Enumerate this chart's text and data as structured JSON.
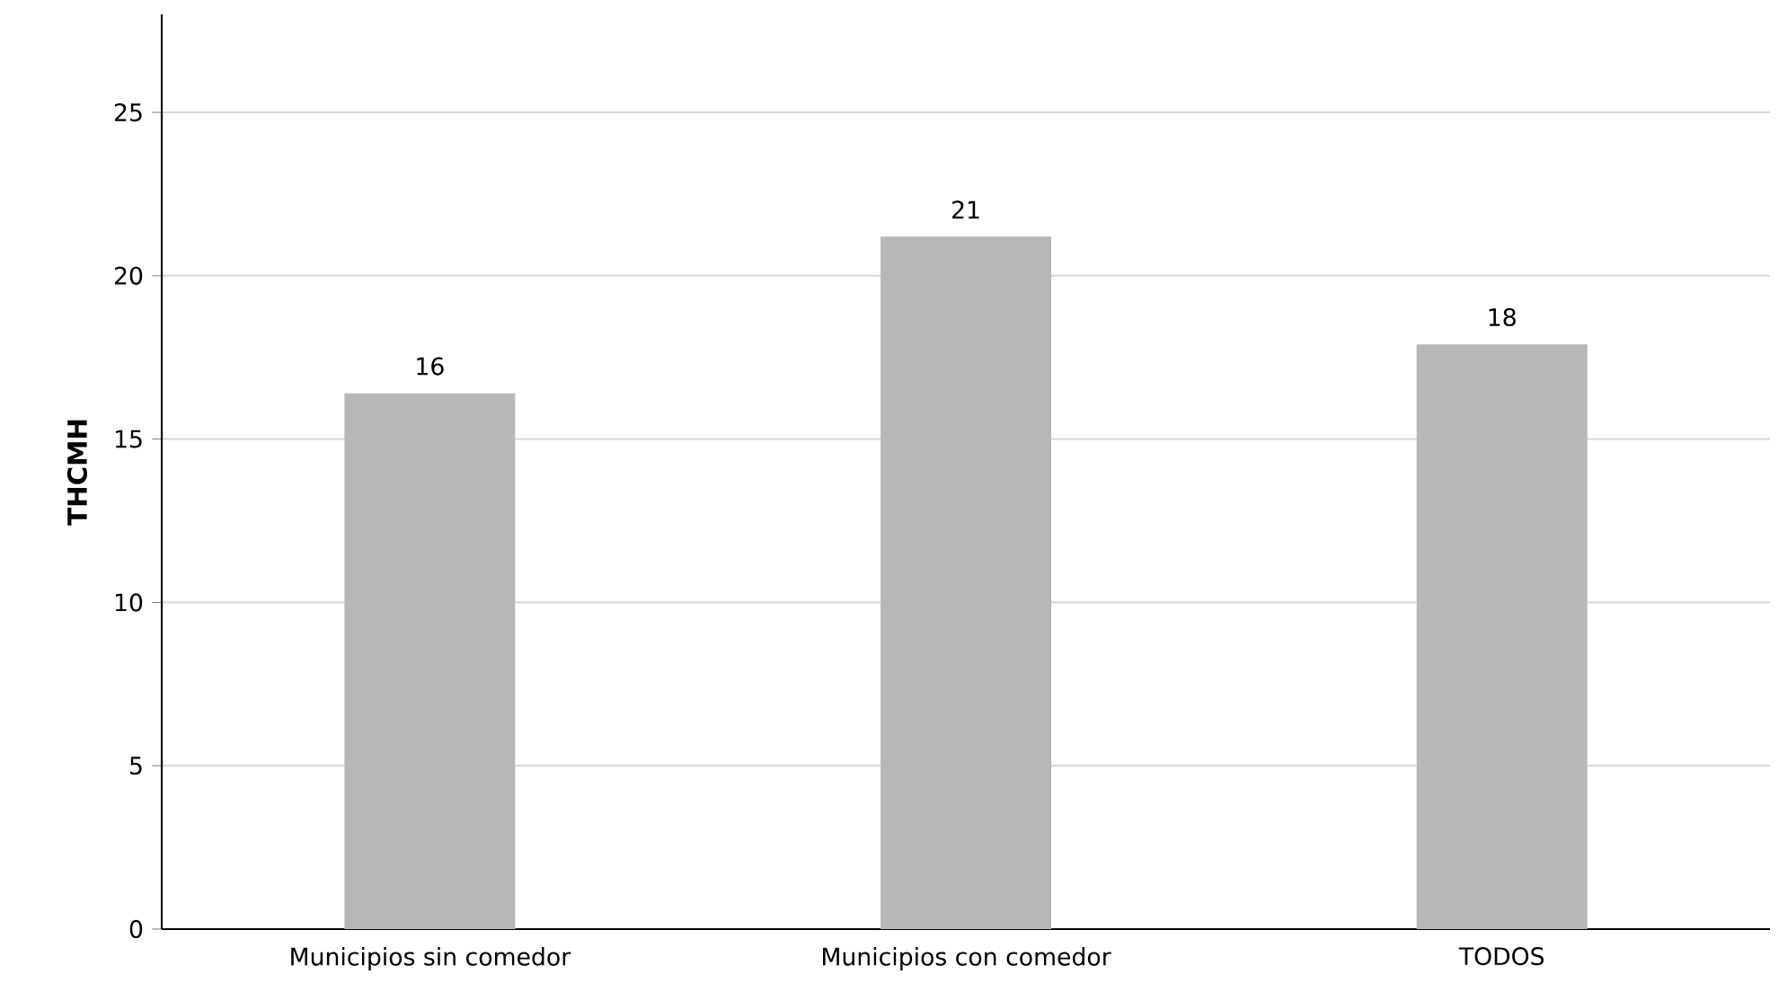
{
  "chart_data": {
    "type": "bar",
    "ylabel": "THCMH",
    "categories": [
      "Municipios sin comedor",
      "Municipios con comedor",
      "TODOS"
    ],
    "values": [
      16.4,
      21.2,
      17.9
    ],
    "value_labels": [
      "16",
      "21",
      "18"
    ],
    "color": "#b7b7b7",
    "ylim": [
      0,
      28
    ],
    "yticks": [
      0,
      5,
      10,
      15,
      20,
      25
    ],
    "grid": "y"
  }
}
